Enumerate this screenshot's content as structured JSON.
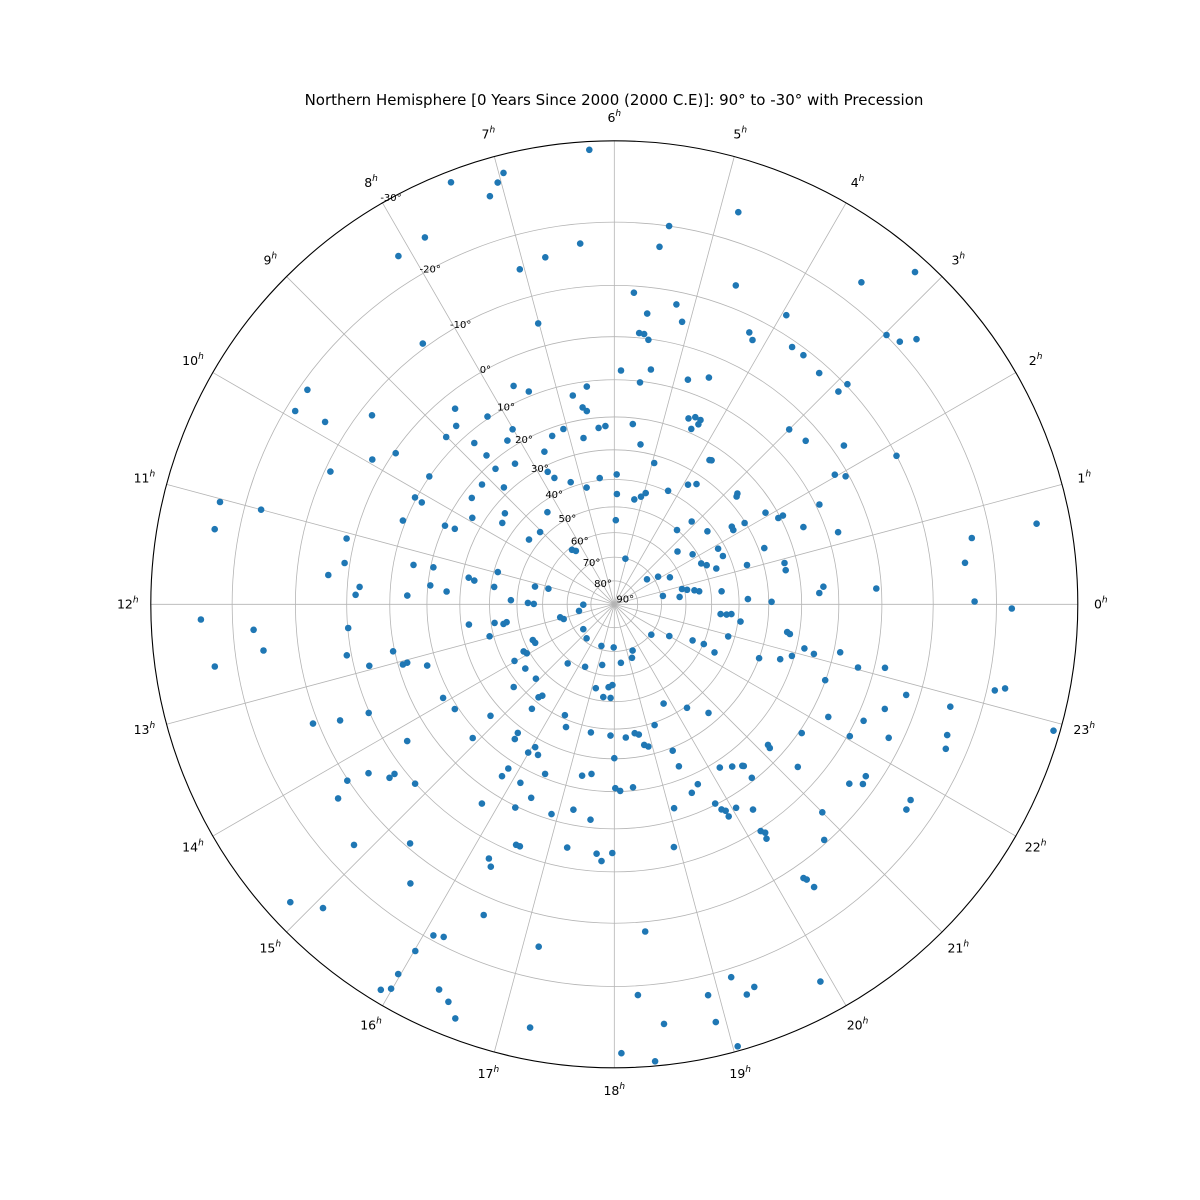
{
  "chart": {
    "title": "Northern Hemisphere [0 Years Since 2000 (2000 C.E)]: 90° to -30° with Precession"
  },
  "chart_data": {
    "type": "scatter",
    "projection": "polar-stereographic",
    "title": "Northern Hemisphere [0 Years Since 2000 (2000 C.E)]: 90° to -30° with Precession",
    "xlabel": "",
    "ylabel": "",
    "theta_unit": "right_ascension_hours",
    "r_unit": "declination_degrees",
    "r_range": [
      90,
      -30
    ],
    "grid": true,
    "legend": "none",
    "marker_color": "#1f77b4",
    "grid_color": "#b4b4b4",
    "spine_color": "#000000",
    "hour_values": [
      0,
      1,
      2,
      3,
      4,
      5,
      6,
      7,
      8,
      9,
      10,
      11,
      12,
      13,
      14,
      15,
      16,
      17,
      18,
      19,
      20,
      21,
      22,
      23
    ],
    "hour_suffix": "h",
    "dec_gridlines": [
      90,
      80,
      70,
      60,
      50,
      40,
      30,
      20,
      10,
      0,
      -10,
      -20,
      -30
    ],
    "dec_tick_labels": [
      "90°",
      "80°",
      "70°",
      "60°",
      "50°",
      "40°",
      "30°",
      "20°",
      "10°",
      "0°",
      "-10°",
      "-20°",
      "-30°"
    ],
    "dec_label_angle_deg": 118.8,
    "points_format": [
      "ra_hours",
      "dec_degrees"
    ],
    "points": [
      [
        7.41,
        -28.8
      ],
      [
        7.82,
        -24.1
      ],
      [
        8.12,
        -23.7
      ],
      [
        8.42,
        -10.8
      ],
      [
        9.67,
        -18.9
      ],
      [
        9.92,
        -18.7
      ],
      [
        9.85,
        -13.9
      ],
      [
        9.47,
        -7.9
      ],
      [
        8.61,
        3.4
      ],
      [
        8.77,
        6.6
      ],
      [
        9.01,
        6.9
      ],
      [
        6.21,
        -29.1
      ],
      [
        6.96,
        -28.0
      ],
      [
        7.03,
        -27.1
      ],
      [
        7.13,
        -25.8
      ],
      [
        4.83,
        -23.9
      ],
      [
        5.45,
        -20.0
      ],
      [
        5.52,
        -16.8
      ],
      [
        6.36,
        -17.1
      ],
      [
        6.75,
        -15.8
      ],
      [
        7.05,
        -14.9
      ],
      [
        4.61,
        -13.8
      ],
      [
        5.76,
        -8.8
      ],
      [
        5.22,
        -7.7
      ],
      [
        5.57,
        -5.1
      ],
      [
        5.1,
        -4.7
      ],
      [
        5.65,
        -1.0
      ],
      [
        5.58,
        -0.9
      ],
      [
        5.51,
        0.2
      ],
      [
        4.24,
        -7.2
      ],
      [
        4.16,
        -6.2
      ],
      [
        7.01,
        -4.8
      ],
      [
        5.89,
        7.7
      ],
      [
        5.41,
        6.8
      ],
      [
        5.56,
        10.3
      ],
      [
        4.79,
        7.1
      ],
      [
        4.49,
        4.9
      ],
      [
        7.65,
        6.1
      ],
      [
        7.46,
        8.8
      ],
      [
        6.48,
        11.3
      ],
      [
        6.75,
        13.0
      ],
      [
        6.61,
        16.6
      ],
      [
        6.54,
        17.8
      ],
      [
        8.27,
        9.5
      ],
      [
        8.01,
        15.8
      ],
      [
        7.08,
        21.4
      ],
      [
        7.35,
        22.3
      ],
      [
        6.34,
        23.0
      ],
      [
        6.19,
        22.6
      ],
      [
        5.61,
        21.8
      ],
      [
        4.55,
        16.4
      ],
      [
        4.44,
        15.4
      ],
      [
        4.33,
        15.5
      ],
      [
        4.42,
        18.8
      ],
      [
        4.33,
        16.8
      ],
      [
        6.7,
        25.4
      ],
      [
        8.21,
        17.7
      ],
      [
        8.73,
        12.8
      ],
      [
        5.38,
        27.6
      ],
      [
        3.19,
        -28.3
      ],
      [
        3.5,
        -23.2
      ],
      [
        3.95,
        -13.0
      ],
      [
        2.98,
        -20.1
      ],
      [
        2.84,
        -20.8
      ],
      [
        2.75,
        -22.7
      ],
      [
        3.69,
        -8.9
      ],
      [
        3.52,
        -8.9
      ],
      [
        3.23,
        -8.2
      ],
      [
        2.89,
        -10.3
      ],
      [
        2.9,
        -8.2
      ],
      [
        3.0,
        4.5
      ],
      [
        2.7,
        3.5
      ],
      [
        2.31,
        -2.4
      ],
      [
        9.94,
        -3.0
      ],
      [
        9.69,
        0.4
      ],
      [
        10.33,
        -9.0
      ],
      [
        9.69,
        9.9
      ],
      [
        10.12,
        9.6
      ],
      [
        10.14,
        11.7
      ],
      [
        11.03,
        -23.4
      ],
      [
        11.0,
        -17.6
      ],
      [
        10.56,
        9.3
      ],
      [
        10.34,
        20.2
      ],
      [
        10.31,
        23.2
      ],
      [
        11.29,
        -23.3
      ],
      [
        11.08,
        -1.7
      ],
      [
        11.42,
        -1.1
      ],
      [
        11.26,
        15.2
      ],
      [
        11.23,
        20.8
      ],
      [
        11.61,
        -4.1
      ],
      [
        11.74,
        2.7
      ],
      [
        11.86,
        1.9
      ],
      [
        11.61,
        20.7
      ],
      [
        11.71,
        25.7
      ],
      [
        11.84,
        14.5
      ],
      [
        12.14,
        -24.2
      ],
      [
        12.27,
        -17.0
      ],
      [
        12.34,
        0.1
      ],
      [
        12.5,
        -15.8
      ],
      [
        12.59,
        -23.0
      ],
      [
        12.72,
        -1.0
      ],
      [
        12.8,
        9.6
      ],
      [
        13.06,
        11.2
      ],
      [
        13.05,
        12.4
      ],
      [
        13.21,
        17.3
      ],
      [
        12.94,
        3.3
      ],
      [
        13.91,
        17.8
      ],
      [
        14.22,
        19.0
      ],
      [
        13.59,
        -0.2
      ],
      [
        13.44,
        -10.9
      ],
      [
        13.53,
        -6.1
      ],
      [
        14.23,
        4.3
      ],
      [
        8.71,
        17.5
      ],
      [
        8.75,
        22.1
      ],
      [
        8.35,
        24.5
      ],
      [
        7.64,
        25.8
      ],
      [
        7.69,
        34.8
      ],
      [
        7.78,
        32.0
      ],
      [
        7.31,
        38.3
      ],
      [
        9.19,
        22.6
      ],
      [
        8.89,
        28.0
      ],
      [
        9.55,
        22.8
      ],
      [
        6.89,
        41.7
      ],
      [
        6.44,
        39.2
      ],
      [
        5.93,
        38.2
      ],
      [
        5.91,
        45.2
      ],
      [
        5.28,
        46.5
      ],
      [
        5.07,
        45.0
      ],
      [
        4.95,
        43.3
      ],
      [
        4.95,
        32.5
      ],
      [
        4.31,
        39.7
      ],
      [
        3.89,
        34.6
      ],
      [
        3.71,
        32.9
      ],
      [
        3.77,
        24.3
      ],
      [
        3.73,
        24.0
      ],
      [
        2.8,
        26.5
      ],
      [
        2.76,
        27.3
      ],
      [
        2.08,
        23.1
      ],
      [
        9.35,
        34.0
      ],
      [
        9.6,
        35.3
      ],
      [
        9.91,
        26.3
      ],
      [
        8.4,
        43.9
      ],
      [
        9.05,
        47.7
      ],
      [
        9.52,
        46.4
      ],
      [
        8.52,
        61.1
      ],
      [
        8.38,
        62.4
      ],
      [
        5.93,
        55.1
      ],
      [
        3.32,
        50.1
      ],
      [
        3.13,
        44.1
      ],
      [
        2.54,
        42.3
      ],
      [
        2.23,
        34.5
      ],
      [
        2.13,
        34.7
      ],
      [
        2.13,
        30.3
      ],
      [
        1.37,
        28.2
      ],
      [
        1.1,
        35.3
      ],
      [
        1.88,
        42.5
      ],
      [
        1.6,
        42.1
      ],
      [
        1.68,
        50.5
      ],
      [
        1.53,
        48.9
      ],
      [
        1.29,
        46.0
      ],
      [
        2.66,
        55.8
      ],
      [
        2.17,
        51.7
      ],
      [
        2.15,
        68.1
      ],
      [
        1.73,
        64.0
      ],
      [
        2.49,
        72.5
      ],
      [
        5.09,
        70.1
      ],
      [
        11.31,
        32.1
      ],
      [
        11.36,
        34.1
      ],
      [
        10.97,
        41.4
      ],
      [
        11.45,
        41.2
      ],
      [
        11.85,
        47.7
      ],
      [
        11.16,
        56.2
      ],
      [
        11.11,
        61.6
      ],
      [
        11.94,
        54.2
      ],
      [
        11.98,
        56.5
      ],
      [
        12.05,
        76.8
      ],
      [
        12.71,
        74.7
      ],
      [
        0.85,
        60.9
      ],
      [
        0.75,
        59.0
      ],
      [
        0.66,
        56.2
      ],
      [
        0.58,
        54.4
      ],
      [
        0.43,
        62.4
      ],
      [
        0.65,
        69.1
      ],
      [
        0.46,
        46.0
      ],
      [
        0.15,
        36.9
      ],
      [
        23.65,
        46.5
      ],
      [
        23.65,
        44.3
      ],
      [
        23.68,
        42.6
      ],
      [
        23.48,
        39.1
      ],
      [
        12.53,
        32.5
      ],
      [
        12.59,
        41.3
      ],
      [
        12.67,
        44.4
      ],
      [
        12.63,
        45.6
      ],
      [
        12.96,
        38.6
      ],
      [
        13.58,
        53.2
      ],
      [
        13.73,
        53.6
      ],
      [
        12.9,
        66.5
      ],
      [
        13.08,
        67.7
      ],
      [
        14.59,
        73.1
      ],
      [
        15.39,
        71.4
      ],
      [
        16.85,
        71.5
      ],
      [
        17.95,
        71.7
      ],
      [
        19.44,
        68.9
      ],
      [
        21.37,
        69.7
      ],
      [
        22.0,
        63.3
      ],
      [
        22.35,
        54.3
      ],
      [
        22.4,
        49.8
      ],
      [
        22.29,
        44.9
      ],
      [
        22.95,
        42.3
      ],
      [
        22.64,
        30.0
      ],
      [
        13.83,
        48.2
      ],
      [
        13.95,
        48.9
      ],
      [
        13.97,
        43.6
      ],
      [
        14.39,
        45.4
      ],
      [
        15.45,
        58.6
      ],
      [
        16.33,
        61.1
      ],
      [
        17.25,
        64.0
      ],
      [
        18.43,
        65.2
      ],
      [
        19.22,
        66.2
      ],
      [
        14.63,
        38.1
      ],
      [
        14.9,
        46.0
      ],
      [
        15.39,
        41.7
      ],
      [
        15.45,
        43.0
      ],
      [
        15.45,
        37.1
      ],
      [
        14.8,
        26.2
      ],
      [
        17.17,
        54.4
      ],
      [
        17.74,
        55.5
      ],
      [
        17.91,
        56.4
      ],
      [
        17.55,
        51.5
      ],
      [
        17.85,
        51.4
      ],
      [
        19.76,
        45.0
      ],
      [
        20.34,
        39.4
      ],
      [
        20.73,
        33.5
      ],
      [
        16.4,
        41.2
      ],
      [
        16.57,
        37.5
      ],
      [
        19.23,
        39.1
      ],
      [
        15.54,
        28.0
      ],
      [
        15.57,
        25.9
      ],
      [
        14.89,
        17.9
      ],
      [
        16.07,
        27.2
      ],
      [
        15.99,
        24.7
      ],
      [
        16.21,
        25.5
      ],
      [
        17.31,
        38.1
      ],
      [
        17.89,
        37.7
      ],
      [
        18.33,
        36.9
      ],
      [
        18.6,
        38.0
      ],
      [
        18.71,
        37.3
      ],
      [
        18.8,
        33.5
      ],
      [
        18.9,
        32.7
      ],
      [
        19.45,
        29.0
      ],
      [
        21.17,
        14.2
      ],
      [
        21.15,
        13.3
      ],
      [
        18.0,
        30.2
      ],
      [
        1.85,
        -10.0
      ],
      [
        2.03,
        2.6
      ],
      [
        1.93,
        0.7
      ],
      [
        1.73,
        9.1
      ],
      [
        1.85,
        20.6
      ],
      [
        1.85,
        19.1
      ],
      [
        1.48,
        15.3
      ],
      [
        1.19,
        7.4
      ],
      [
        0.72,
        -26.2
      ],
      [
        0.7,
        -17.3
      ],
      [
        0.45,
        -15.7
      ],
      [
        0.91,
        23.6
      ],
      [
        0.75,
        23.7
      ],
      [
        0.32,
        13.8
      ],
      [
        0.21,
        15.0
      ],
      [
        0.23,
        1.1
      ],
      [
        0.03,
        -16.8
      ],
      [
        23.96,
        -22.1
      ],
      [
        0.06,
        29.1
      ],
      [
        23.39,
        23.6
      ],
      [
        23.36,
        22.7
      ],
      [
        23.13,
        17.8
      ],
      [
        23.07,
        14.9
      ],
      [
        22.78,
        23.7
      ],
      [
        22.92,
        20.7
      ],
      [
        23.2,
        8.4
      ],
      [
        23.03,
        3.5
      ],
      [
        23.12,
        -2.2
      ],
      [
        22.68,
        10.1
      ],
      [
        23.15,
        -21.1
      ],
      [
        23.19,
        -22.4
      ],
      [
        22.85,
        -7.6
      ],
      [
        22.59,
        -4.6
      ],
      [
        22.87,
        -15.4
      ],
      [
        22.15,
        5.8
      ],
      [
        22.33,
        -1.6
      ],
      [
        21.7,
        9.3
      ],
      [
        22.05,
        -0.5
      ],
      [
        22.27,
        -7.5
      ],
      [
        22.57,
        -16.4
      ],
      [
        22.93,
        -29.3
      ],
      [
        22.43,
        -17.0
      ],
      [
        14.3,
        -6.2
      ],
      [
        14.51,
        -3.4
      ],
      [
        14.51,
        -2.1
      ],
      [
        14.23,
        -10.2
      ],
      [
        14.8,
        -0.1
      ],
      [
        14.34,
        -13.2
      ],
      [
        14.85,
        -15.9
      ],
      [
        15.3,
        -9.2
      ],
      [
        15.59,
        -14.5
      ],
      [
        14.84,
        -27.4
      ],
      [
        15.08,
        -25.1
      ],
      [
        16.09,
        -19.3
      ],
      [
        16.19,
        -18.8
      ],
      [
        16.01,
        -22.4
      ],
      [
        15.98,
        -26.0
      ],
      [
        15.92,
        -28.6
      ],
      [
        15.99,
        -27.9
      ],
      [
        16.37,
        -25.4
      ],
      [
        16.49,
        -26.3
      ],
      [
        16.6,
        -27.8
      ],
      [
        15.81,
        17.7
      ],
      [
        15.79,
        15.0
      ],
      [
        16.15,
        16.0
      ],
      [
        16.52,
        21.2
      ],
      [
        17.29,
        23.8
      ],
      [
        17.49,
        24.8
      ],
      [
        19.45,
        23.8
      ],
      [
        20.19,
        18.0
      ],
      [
        20.4,
        16.3
      ],
      [
        20.56,
        14.8
      ],
      [
        20.58,
        14.5
      ],
      [
        18.02,
        21.0
      ],
      [
        18.12,
        20.2
      ],
      [
        18.39,
        21.0
      ],
      [
        19.66,
        16.9
      ],
      [
        19.49,
        15.4
      ],
      [
        20.56,
        10.8
      ],
      [
        15.76,
        6.4
      ],
      [
        16.27,
        9.6
      ],
      [
        16.45,
        13.6
      ],
      [
        16.89,
        11.4
      ],
      [
        17.25,
        13.9
      ],
      [
        17.58,
        12.0
      ],
      [
        19.09,
        13.1
      ],
      [
        19.79,
        10.3
      ],
      [
        19.84,
        8.3
      ],
      [
        19.89,
        7.5
      ],
      [
        19.89,
        6.0
      ],
      [
        20.06,
        6.9
      ],
      [
        20.27,
        4.4
      ],
      [
        20.19,
        -0.5
      ],
      [
        20.23,
        -1.3
      ],
      [
        20.2,
        -2.5
      ],
      [
        16.52,
        1.7
      ],
      [
        16.58,
        1.7
      ],
      [
        16.25,
        -3.3
      ],
      [
        16.32,
        -4.6
      ],
      [
        17.27,
        4.4
      ],
      [
        17.73,
        3.9
      ],
      [
        17.97,
        4.2
      ],
      [
        17.81,
        2.3
      ],
      [
        18.92,
        3.9
      ],
      [
        16.48,
        -13.1
      ],
      [
        17.17,
        -15.3
      ],
      [
        18.36,
        -11.7
      ],
      [
        19.16,
        -21.2
      ],
      [
        19.34,
        -23.4
      ],
      [
        19.25,
        -24.0
      ],
      [
        18.23,
        -21.3
      ],
      [
        18.9,
        -22.7
      ],
      [
        18.45,
        -25.3
      ],
      [
        18.91,
        -26.2
      ],
      [
        17.25,
        -26.4
      ],
      [
        19.04,
        -29.5
      ],
      [
        18.06,
        -28.4
      ],
      [
        18.34,
        -29.5
      ],
      [
        21.23,
        5.0
      ],
      [
        21.51,
        -5.7
      ],
      [
        21.61,
        -7.8
      ],
      [
        21.71,
        -7.4
      ],
      [
        21.77,
        -16.0
      ],
      [
        21.66,
        -16.3
      ],
      [
        21.0,
        -5.4
      ],
      [
        20.78,
        -9.4
      ],
      [
        20.31,
        -12.4
      ],
      [
        20.33,
        -12.9
      ],
      [
        20.35,
        -14.6
      ],
      [
        19.91,
        -26.2
      ]
    ]
  }
}
